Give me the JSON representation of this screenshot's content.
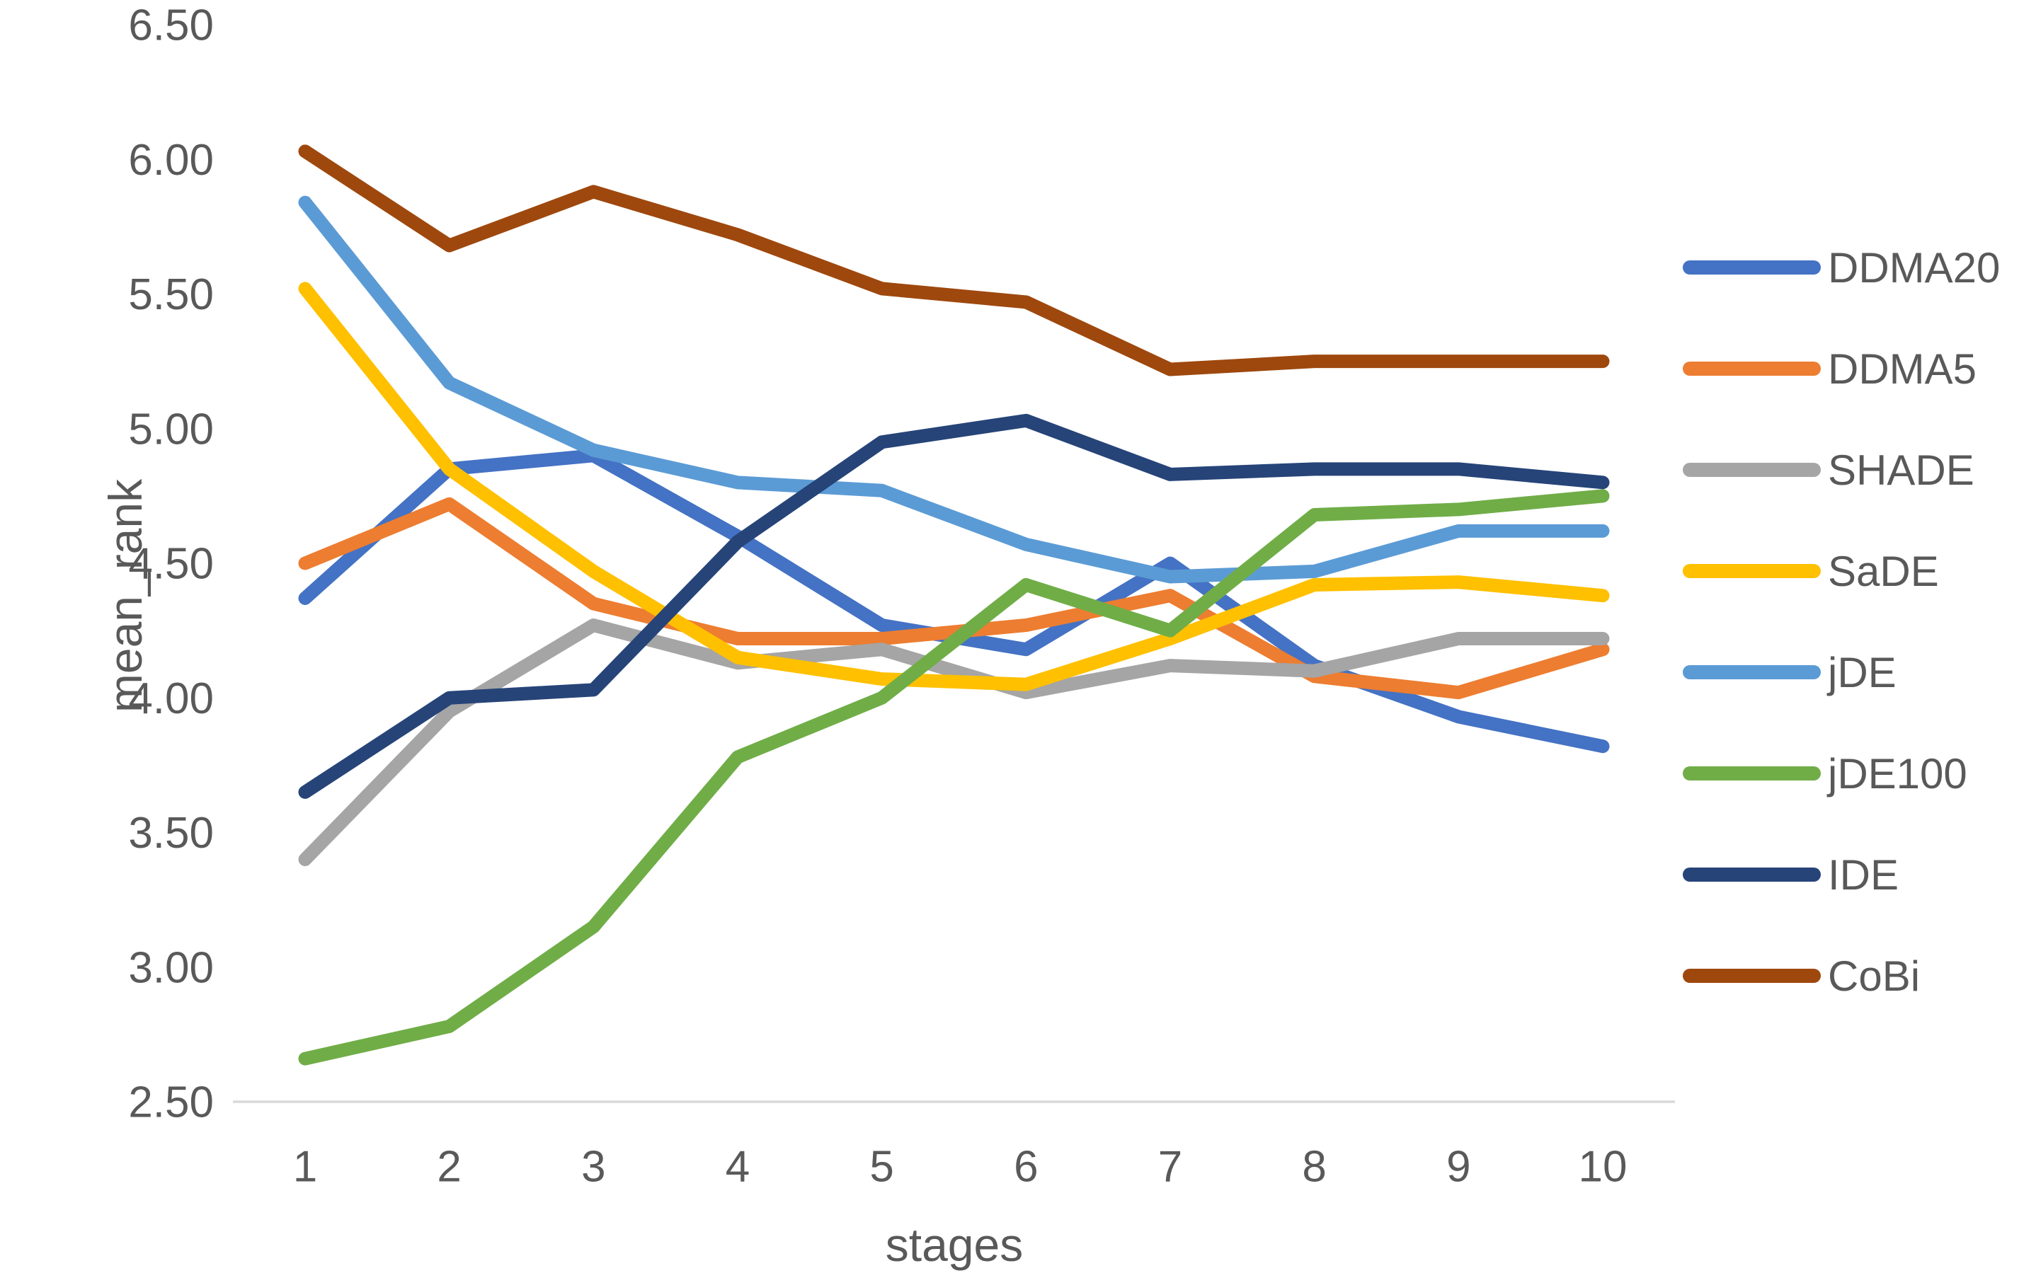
{
  "chart_data": {
    "type": "line",
    "title": "",
    "xlabel": "stages",
    "ylabel": "mean_rank",
    "x": [
      1,
      2,
      3,
      4,
      5,
      6,
      7,
      8,
      9,
      10
    ],
    "xticks": [
      "1",
      "2",
      "3",
      "4",
      "5",
      "6",
      "7",
      "8",
      "9",
      "10"
    ],
    "ymin": 2.5,
    "ymax": 6.5,
    "ytick_step": 0.5,
    "yticks": [
      "2.50",
      "3.00",
      "3.50",
      "4.00",
      "4.50",
      "5.00",
      "5.50",
      "6.00",
      "6.50"
    ],
    "grid": false,
    "legend_position": "right",
    "axis_line_color": "#d9d9d9",
    "text_color": "#595959",
    "series": [
      {
        "name": "DDMA20",
        "color": "#4472C4",
        "values": [
          4.37,
          4.85,
          4.9,
          4.6,
          4.27,
          4.18,
          4.5,
          4.12,
          3.93,
          3.82
        ]
      },
      {
        "name": "DDMA5",
        "color": "#ED7D31",
        "values": [
          4.5,
          4.72,
          4.35,
          4.22,
          4.22,
          4.27,
          4.38,
          4.08,
          4.02,
          4.18
        ]
      },
      {
        "name": "SHADE",
        "color": "#A5A5A5",
        "values": [
          3.4,
          3.95,
          4.27,
          4.13,
          4.18,
          4.02,
          4.12,
          4.1,
          4.22,
          4.22
        ]
      },
      {
        "name": "SaDE",
        "color": "#FFC000",
        "values": [
          5.52,
          4.85,
          4.47,
          4.15,
          4.07,
          4.05,
          4.22,
          4.42,
          4.43,
          4.38
        ]
      },
      {
        "name": "jDE",
        "color": "#5B9BD5",
        "values": [
          5.84,
          5.17,
          4.92,
          4.8,
          4.77,
          4.57,
          4.45,
          4.47,
          4.62,
          4.62
        ]
      },
      {
        "name": "jDE100",
        "color": "#70AD47",
        "values": [
          2.66,
          2.78,
          3.15,
          3.78,
          4.0,
          4.42,
          4.25,
          4.68,
          4.7,
          4.75
        ]
      },
      {
        "name": "IDE",
        "color": "#264478",
        "values": [
          3.65,
          4.0,
          4.03,
          4.58,
          4.95,
          5.03,
          4.83,
          4.85,
          4.85,
          4.8
        ]
      },
      {
        "name": "CoBi",
        "color": "#9E480E",
        "values": [
          6.03,
          5.68,
          5.88,
          5.72,
          5.52,
          5.47,
          5.22,
          5.25,
          5.25,
          5.25
        ]
      }
    ]
  }
}
